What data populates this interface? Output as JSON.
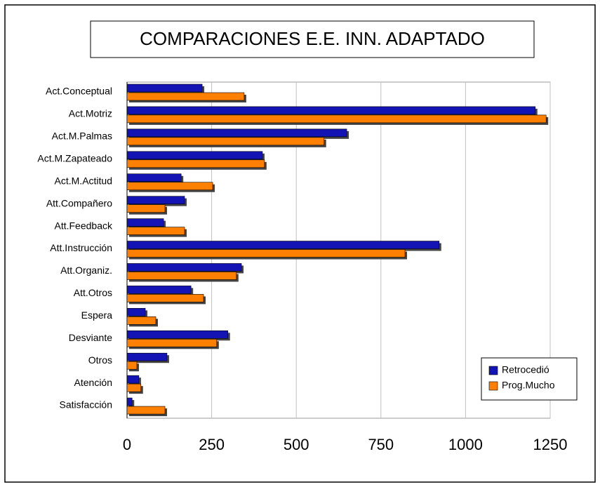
{
  "chart_data": {
    "type": "bar",
    "orientation": "horizontal",
    "title": "COMPARACIONES E.E. INN. ADAPTADO",
    "categories": [
      "Act.Conceptual",
      "Act.Motriz",
      "Act.M.Palmas",
      "Act.M.Zapateado",
      "Act.M.Actitud",
      "Att.Compañero",
      "Att.Feedback",
      "Att.Instrucción",
      "Att.Organiz.",
      "Att.Otros",
      "Espera",
      "Desviante",
      "Otros",
      "Atención",
      "Satisfacción"
    ],
    "series": [
      {
        "name": "Retrocedió",
        "color": "#1414b4",
        "values": [
          222,
          1206,
          649,
          400,
          160,
          170,
          108,
          922,
          338,
          189,
          54,
          298,
          118,
          35,
          15
        ]
      },
      {
        "name": "Prog.Mucho",
        "color": "#ff8000",
        "values": [
          346,
          1238,
          582,
          406,
          253,
          112,
          170,
          821,
          323,
          226,
          85,
          265,
          29,
          41,
          112
        ]
      }
    ],
    "xlim": [
      0,
      1250
    ],
    "xticks": [
      0,
      250,
      500,
      750,
      1000,
      1250
    ],
    "grid": true,
    "legend": "lower right"
  }
}
